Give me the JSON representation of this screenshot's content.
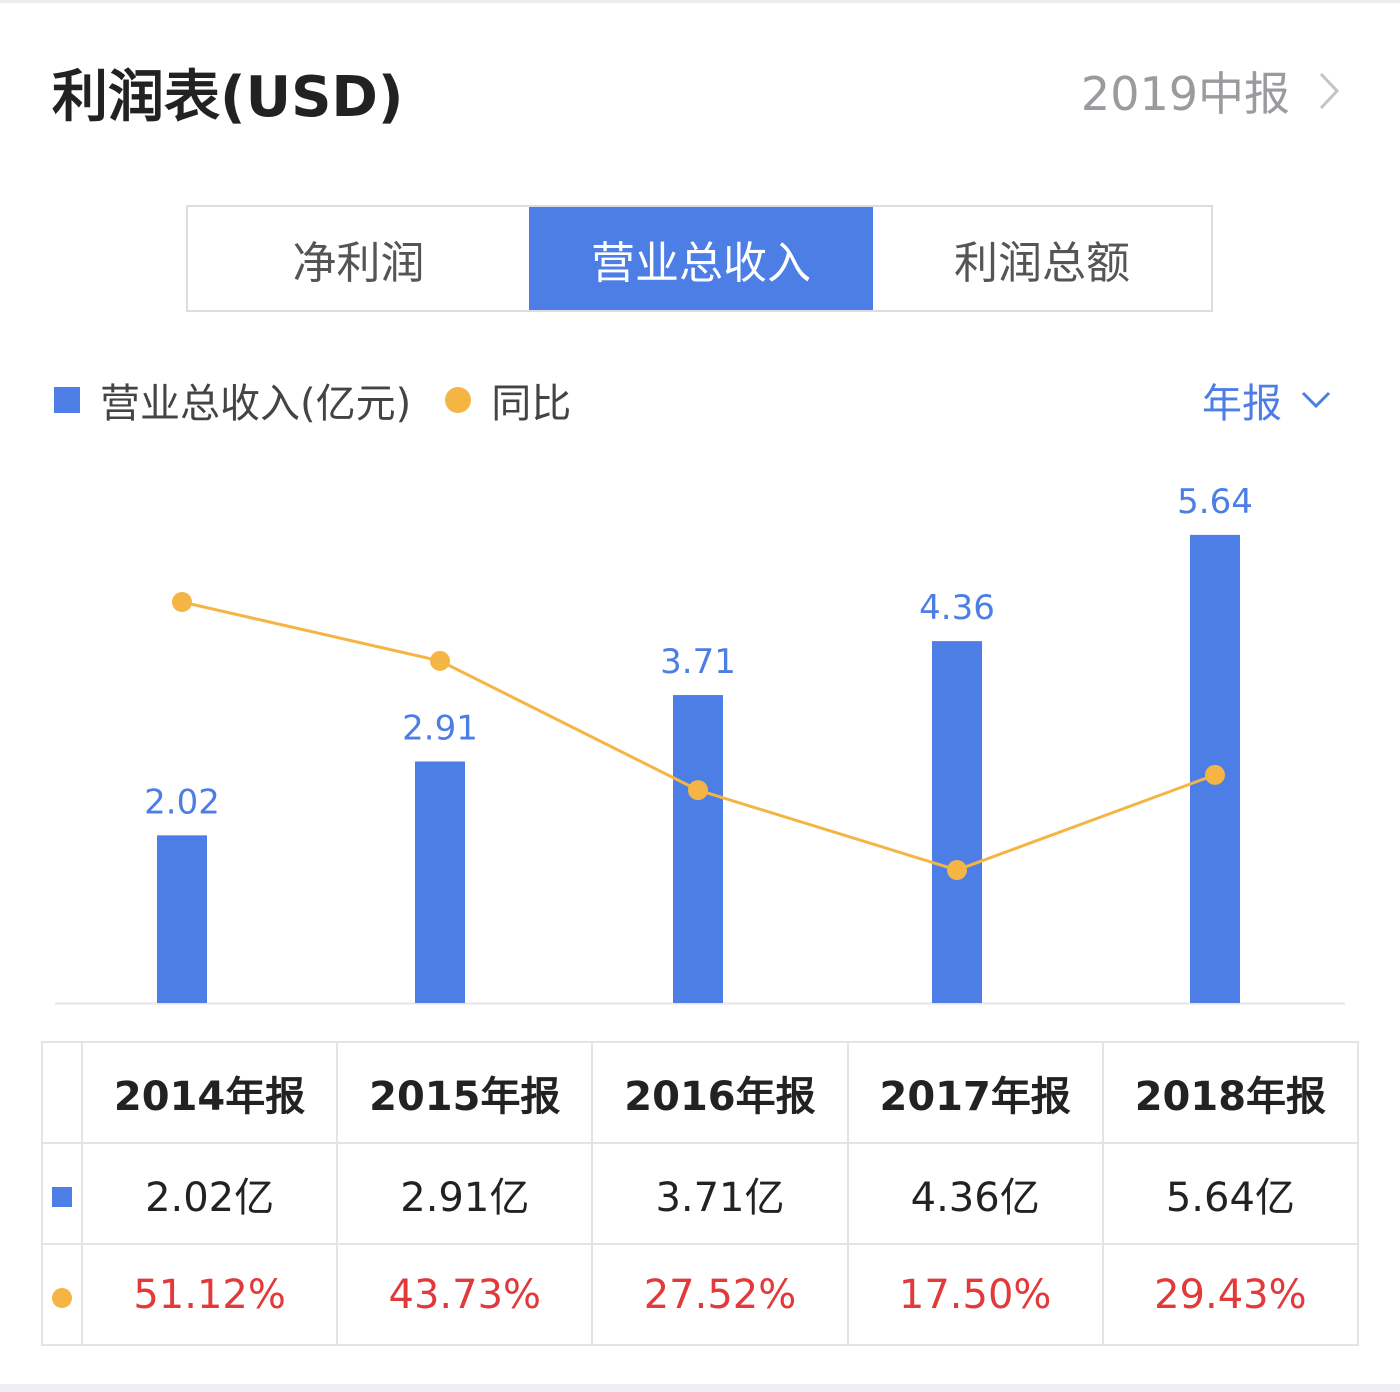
{
  "header": {
    "title": "利润表(USD)",
    "report_period": "2019中报"
  },
  "tabs": [
    {
      "label": "净利润",
      "active": false
    },
    {
      "label": "营业总收入",
      "active": true
    },
    {
      "label": "利润总额",
      "active": false
    }
  ],
  "legend": {
    "bar_label": "营业总收入(亿元)",
    "line_label": "同比"
  },
  "period_select": {
    "value": "年报"
  },
  "colors": {
    "bar": "#4c7ee5",
    "line": "#f5b544",
    "positive": "#e2393a"
  },
  "chart_data": {
    "type": "bar",
    "categories": [
      "2014年报",
      "2015年报",
      "2016年报",
      "2017年报",
      "2018年报"
    ],
    "series": [
      {
        "name": "营业总收入(亿元)",
        "type": "bar",
        "values": [
          2.02,
          2.91,
          3.71,
          4.36,
          5.64
        ],
        "labels": [
          "2.02",
          "2.91",
          "3.71",
          "4.36",
          "5.64"
        ]
      },
      {
        "name": "同比",
        "type": "line",
        "values": [
          51.12,
          43.73,
          27.52,
          17.5,
          29.43
        ]
      }
    ],
    "legend_position": "top-left",
    "grid": false
  },
  "table": {
    "headers": [
      "2014年报",
      "2015年报",
      "2016年报",
      "2017年报",
      "2018年报"
    ],
    "revenue_row": [
      "2.02亿",
      "2.91亿",
      "3.71亿",
      "4.36亿",
      "5.64亿"
    ],
    "yoy_row": [
      "51.12%",
      "43.73%",
      "27.52%",
      "17.50%",
      "29.43%"
    ]
  }
}
